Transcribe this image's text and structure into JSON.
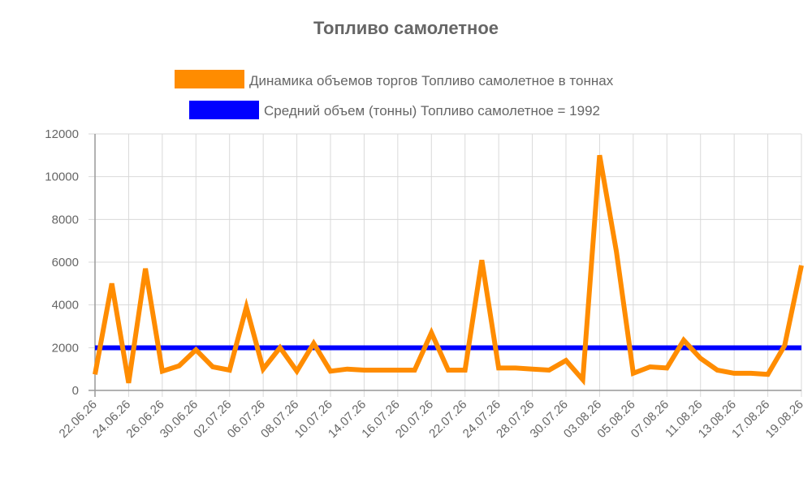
{
  "chart_data": {
    "type": "line",
    "title": "Топливо самолетное",
    "xlabel": "",
    "ylabel": "",
    "ylim": [
      0,
      12000
    ],
    "yticks": [
      0,
      2000,
      4000,
      6000,
      8000,
      10000,
      12000
    ],
    "tick_labels": [
      "22.06.26",
      "24.06.26",
      "26.06.26",
      "30.06.26",
      "02.07.26",
      "06.07.26",
      "08.07.26",
      "10.07.26",
      "14.07.26",
      "16.07.26",
      "20.07.26",
      "22.07.26",
      "24.07.26",
      "28.07.26",
      "30.07.26",
      "03.08.26",
      "05.08.26",
      "07.08.26",
      "11.08.26",
      "13.08.26",
      "17.08.26",
      "19.08.26"
    ],
    "legend_placement": "top",
    "grid": true,
    "series": [
      {
        "name": "Динамика объемов торгов Топливо самолетное в тоннах",
        "color": "#ff8c00",
        "values": [
          750,
          5000,
          350,
          5700,
          900,
          1150,
          1900,
          1100,
          950,
          3900,
          1000,
          2000,
          900,
          2200,
          900,
          1000,
          950,
          950,
          950,
          950,
          2700,
          950,
          950,
          6100,
          1050,
          1050,
          1000,
          950,
          1400,
          500,
          11000,
          6500,
          800,
          1100,
          1050,
          2350,
          1500,
          950,
          800,
          800,
          750,
          2100,
          5850
        ]
      },
      {
        "name": "Средний объем (тонны) Топливо самолетное = 1992",
        "color": "#0000ff",
        "values": [
          1992,
          1992,
          1992,
          1992,
          1992,
          1992,
          1992,
          1992,
          1992,
          1992,
          1992,
          1992,
          1992,
          1992,
          1992,
          1992,
          1992,
          1992,
          1992,
          1992,
          1992,
          1992,
          1992,
          1992,
          1992,
          1992,
          1992,
          1992,
          1992,
          1992,
          1992,
          1992,
          1992,
          1992,
          1992,
          1992,
          1992,
          1992,
          1992,
          1992,
          1992,
          1992,
          1992
        ]
      }
    ]
  }
}
